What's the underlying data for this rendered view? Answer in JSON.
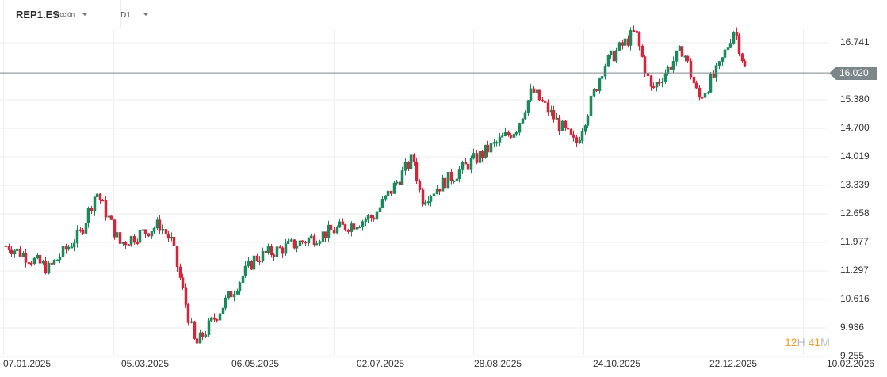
{
  "header": {
    "symbol": "REP1.ES",
    "instrument_type": "Acción",
    "timeframe": "D1"
  },
  "current_price": {
    "label": "16.020",
    "value": 16.02,
    "color": "#7c878c"
  },
  "countdown": {
    "hours": "12",
    "hours_unit": "H",
    "minutes": "41",
    "minutes_unit": "M"
  },
  "colors": {
    "up": "#1a8a5a",
    "down": "#d6243a",
    "grid": "#eeeeee"
  },
  "y_axis": {
    "ticks": [
      "16.741",
      "15.380",
      "14.700",
      "14.019",
      "13.339",
      "12.658",
      "11.977",
      "11.297",
      "10.616",
      "9.936",
      "9.255"
    ]
  },
  "x_axis": {
    "ticks": [
      "07.01.2025",
      "05.03.2025",
      "06.05.2025",
      "02.07.2025",
      "28.08.2025",
      "24.10.2025",
      "22.12.2025",
      "10.02.2026"
    ]
  },
  "chart_data": {
    "type": "candlestick",
    "title": "REP1.ES D1",
    "xlabel": "",
    "ylabel": "",
    "ylim": [
      9.255,
      17.2
    ],
    "grid": true,
    "y_ticks": [
      16.741,
      16.02,
      15.38,
      14.7,
      14.019,
      13.339,
      12.658,
      11.977,
      11.297,
      10.616,
      9.936,
      9.255
    ],
    "x_ticks": [
      "07.01.2025",
      "05.03.2025",
      "06.05.2025",
      "02.07.2025",
      "28.08.2025",
      "24.10.2025",
      "22.12.2025",
      "10.02.2026"
    ],
    "last_price": 16.02,
    "approx_close_path": [
      {
        "date": "07.01.2025",
        "close": 11.9
      },
      {
        "date": "late Jan 2025",
        "close": 11.35
      },
      {
        "date": "mid Feb 2025",
        "close": 12.2
      },
      {
        "date": "late Feb 2025",
        "close": 13.2
      },
      {
        "date": "05.03.2025",
        "close": 11.95
      },
      {
        "date": "late Mar 2025",
        "close": 12.4
      },
      {
        "date": "early Apr 2025",
        "close": 12.0
      },
      {
        "date": "mid Apr 2025",
        "close": 9.5
      },
      {
        "date": "06.05.2025",
        "close": 11.6
      },
      {
        "date": "02.07.2025",
        "close": 12.6
      },
      {
        "date": "late Jul 2025",
        "close": 14.0
      },
      {
        "date": "early Aug 2025",
        "close": 13.0
      },
      {
        "date": "28.08.2025",
        "close": 14.7
      },
      {
        "date": "mid Sep 2025",
        "close": 15.6
      },
      {
        "date": "early Oct 2025",
        "close": 14.3
      },
      {
        "date": "24.10.2025",
        "close": 16.2
      },
      {
        "date": "early Nov 2025",
        "close": 17.0
      },
      {
        "date": "mid Nov 2025",
        "close": 15.6
      },
      {
        "date": "early Dec 2025",
        "close": 16.6
      },
      {
        "date": "mid Dec 2025",
        "close": 15.4
      },
      {
        "date": "22.12.2025",
        "close": 16.1
      },
      {
        "date": "early Jan 2026",
        "close": 17.1
      },
      {
        "date": "latest",
        "close": 16.02
      }
    ]
  }
}
